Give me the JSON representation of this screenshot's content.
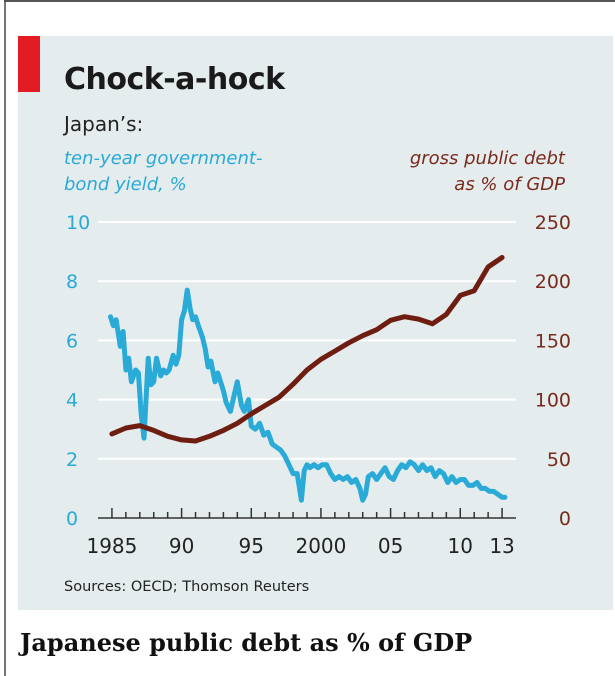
{
  "caption": "Japanese public debt as % of GDP",
  "colors": {
    "bond": "#2aaad7",
    "debt": "#6e1e10",
    "panel": "#e4ecee",
    "accent": "#e31b23"
  },
  "chart_data": {
    "type": "line",
    "title": "Chock-a-hock",
    "subtitle": "Japan’s:",
    "left_axis_label": [
      "ten-year government-",
      "bond yield, %"
    ],
    "right_axis_label": [
      "gross public debt",
      "as % of GDP"
    ],
    "source": "Sources: OECD; Thomson Reuters",
    "x_ticks": [
      "1985",
      "90",
      "95",
      "2000",
      "05",
      "10",
      "13"
    ],
    "xlim": [
      1984,
      2014
    ],
    "y_left_ticks": [
      "0",
      "2",
      "4",
      "6",
      "8",
      "10"
    ],
    "y_right_ticks": [
      "0",
      "50",
      "100",
      "150",
      "200",
      "250"
    ],
    "y_left_lim": [
      0,
      10
    ],
    "y_right_lim": [
      0,
      250
    ],
    "series": [
      {
        "name": "ten-year government-bond yield, %",
        "axis": "left",
        "x": [
          1984.9,
          1985.1,
          1985.3,
          1985.6,
          1985.8,
          1986.0,
          1986.2,
          1986.4,
          1986.7,
          1986.9,
          1987.1,
          1987.3,
          1987.6,
          1987.8,
          1988.0,
          1988.2,
          1988.5,
          1988.7,
          1988.9,
          1989.1,
          1989.4,
          1989.6,
          1989.8,
          1990.0,
          1990.2,
          1990.4,
          1990.6,
          1990.8,
          1991.0,
          1991.2,
          1991.5,
          1991.7,
          1991.9,
          1992.1,
          1992.4,
          1992.6,
          1992.8,
          1993.0,
          1993.2,
          1993.5,
          1993.8,
          1994.0,
          1994.3,
          1994.5,
          1994.8,
          1995.0,
          1995.3,
          1995.6,
          1995.9,
          1996.2,
          1996.5,
          1996.8,
          1997.1,
          1997.4,
          1997.7,
          1998.0,
          1998.3,
          1998.6,
          1998.8,
          1999.0,
          1999.2,
          1999.5,
          1999.8,
          2000.1,
          2000.4,
          2000.7,
          2001.0,
          2001.3,
          2001.6,
          2001.9,
          2002.2,
          2002.5,
          2002.8,
          2003.0,
          2003.2,
          2003.4,
          2003.7,
          2004.0,
          2004.3,
          2004.6,
          2004.9,
          2005.2,
          2005.5,
          2005.8,
          2006.1,
          2006.4,
          2006.7,
          2007.0,
          2007.3,
          2007.6,
          2007.9,
          2008.2,
          2008.5,
          2008.8,
          2009.1,
          2009.4,
          2009.7,
          2010.0,
          2010.3,
          2010.6,
          2010.9,
          2011.2,
          2011.5,
          2011.8,
          2012.1,
          2012.4,
          2012.7,
          2013.0,
          2013.2
        ],
        "values": [
          6.8,
          6.5,
          6.7,
          5.8,
          6.3,
          5.0,
          5.4,
          4.6,
          5.0,
          4.9,
          3.5,
          2.7,
          5.4,
          4.5,
          4.6,
          5.4,
          4.8,
          5.0,
          4.9,
          5.0,
          5.5,
          5.2,
          5.5,
          6.7,
          7.0,
          7.7,
          7.1,
          6.7,
          6.8,
          6.5,
          6.1,
          5.7,
          5.1,
          5.3,
          4.6,
          4.9,
          4.6,
          4.3,
          3.9,
          3.6,
          4.2,
          4.6,
          3.8,
          3.6,
          4.0,
          3.1,
          3.0,
          3.2,
          2.8,
          2.9,
          2.5,
          2.4,
          2.3,
          2.1,
          1.8,
          1.5,
          1.5,
          0.6,
          1.6,
          1.8,
          1.7,
          1.8,
          1.7,
          1.8,
          1.8,
          1.5,
          1.3,
          1.4,
          1.3,
          1.4,
          1.2,
          1.3,
          1.0,
          0.6,
          0.8,
          1.4,
          1.5,
          1.3,
          1.5,
          1.7,
          1.4,
          1.3,
          1.6,
          1.8,
          1.7,
          1.9,
          1.8,
          1.6,
          1.8,
          1.6,
          1.7,
          1.4,
          1.6,
          1.5,
          1.2,
          1.4,
          1.2,
          1.3,
          1.3,
          1.1,
          1.1,
          1.2,
          1.0,
          1.0,
          0.9,
          0.9,
          0.8,
          0.7,
          0.7
        ]
      },
      {
        "name": "gross public debt as % of GDP",
        "axis": "right",
        "x": [
          1985,
          1986,
          1987,
          1988,
          1989,
          1990,
          1991,
          1992,
          1993,
          1994,
          1995,
          1996,
          1997,
          1998,
          1999,
          2000,
          2001,
          2002,
          2003,
          2004,
          2005,
          2006,
          2007,
          2008,
          2009,
          2010,
          2011,
          2012,
          2013
        ],
        "values": [
          71,
          76,
          78,
          74,
          69,
          66,
          65,
          69,
          74,
          80,
          88,
          95,
          102,
          113,
          125,
          134,
          141,
          148,
          154,
          159,
          167,
          170,
          168,
          164,
          172,
          188,
          192,
          212,
          220
        ]
      }
    ]
  }
}
